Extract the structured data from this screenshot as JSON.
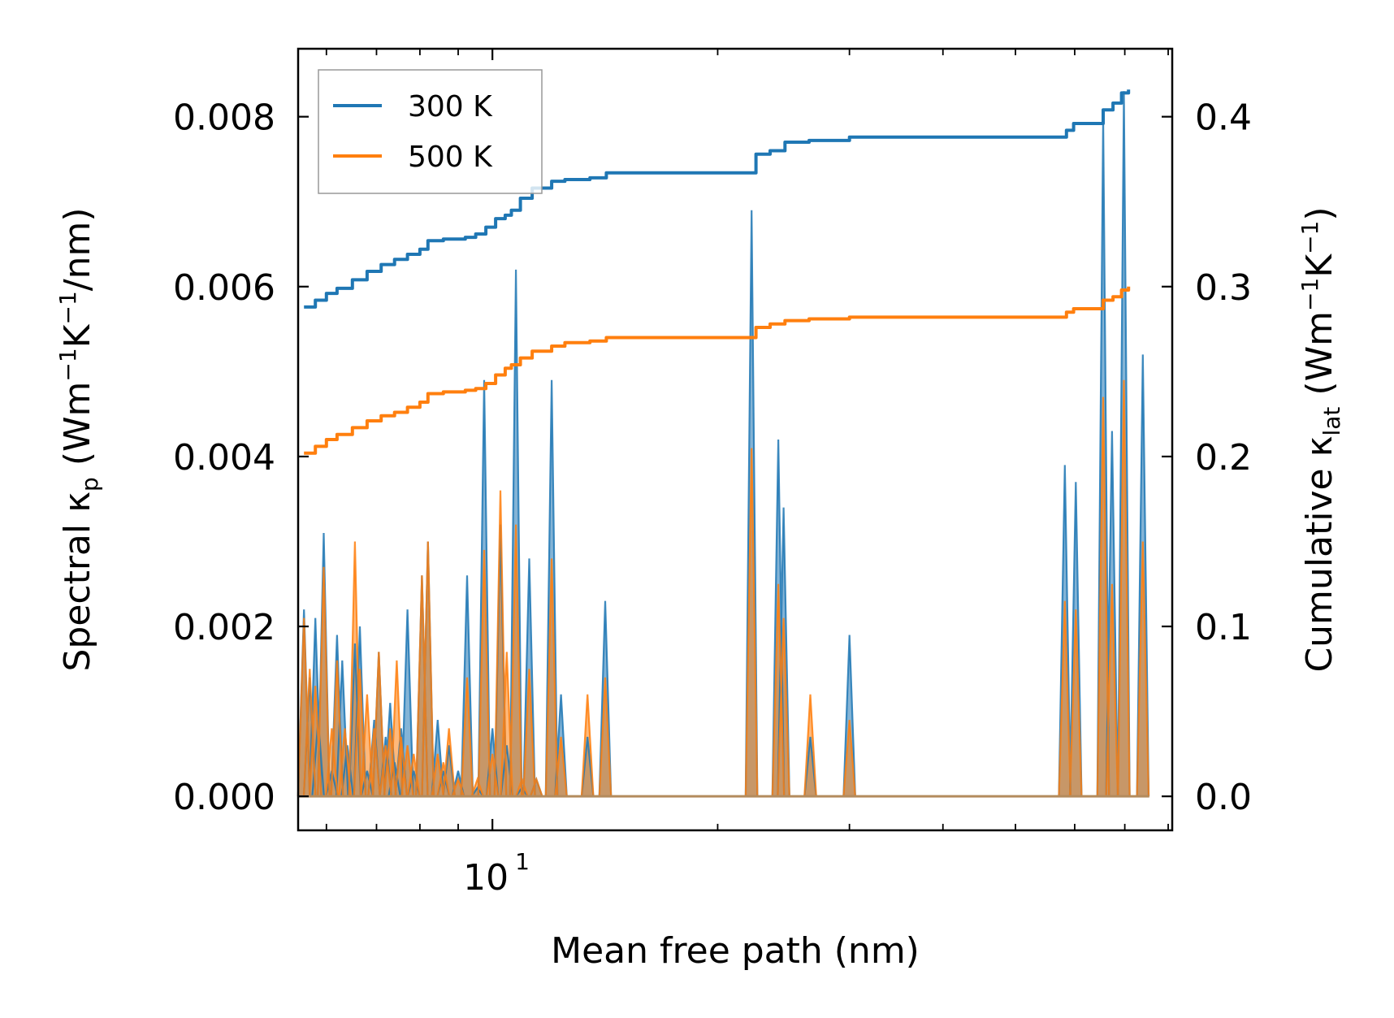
{
  "chart_data": {
    "type": "line",
    "xscale": "log",
    "xlabel": "Mean free path (nm)",
    "xlim": [
      5.5,
      81
    ],
    "x_tick_labels": [
      {
        "value": 10,
        "label": "10",
        "exponent": "1"
      }
    ],
    "x_minor_ticks": [
      6,
      7,
      8,
      9,
      20,
      30,
      40,
      50,
      60,
      70,
      80
    ],
    "y_left": {
      "label_prefix": "Spectral κ",
      "label_sub": "p",
      "label_unit": " (Wm",
      "label_sup1": "−1",
      "label_mid": "K",
      "label_sup2": "−1",
      "label_end": "/nm)",
      "lim": [
        -0.0004,
        0.0088
      ],
      "ticks": [
        0.0,
        0.002,
        0.004,
        0.006,
        0.008
      ],
      "tick_labels": [
        "0.000",
        "0.002",
        "0.004",
        "0.006",
        "0.008"
      ]
    },
    "y_right": {
      "label_prefix": "Cumulative κ",
      "label_sub": "lat",
      "label_unit": " (Wm",
      "label_sup1": "−1",
      "label_mid": "K",
      "label_sup2": "−1",
      "label_end": ")",
      "lim": [
        -0.02,
        0.44
      ],
      "ticks": [
        0.0,
        0.1,
        0.2,
        0.3,
        0.4
      ],
      "tick_labels": [
        "0.0",
        "0.1",
        "0.2",
        "0.3",
        "0.4"
      ]
    },
    "legend": {
      "position": "top-left",
      "entries": [
        "300 K",
        "500 K"
      ]
    },
    "colors": {
      "300 K": "#1f77b4",
      "500 K": "#ff7f0e"
    },
    "spectral_300K": [
      [
        5.6,
        0.0022
      ],
      [
        5.7,
        0.0014
      ],
      [
        5.8,
        0.0021
      ],
      [
        5.85,
        0.0009
      ],
      [
        5.95,
        0.0031
      ],
      [
        6.1,
        0.0003
      ],
      [
        6.2,
        0.0019
      ],
      [
        6.3,
        0.0016
      ],
      [
        6.4,
        0.0006
      ],
      [
        6.55,
        0.0018
      ],
      [
        6.65,
        0.002
      ],
      [
        6.8,
        0.0003
      ],
      [
        6.95,
        0.0009
      ],
      [
        7.05,
        0.0017
      ],
      [
        7.2,
        0.0007
      ],
      [
        7.3,
        0.0011
      ],
      [
        7.4,
        0.0004
      ],
      [
        7.55,
        0.0008
      ],
      [
        7.7,
        0.0022
      ],
      [
        7.85,
        0.0003
      ],
      [
        8.05,
        0.0026
      ],
      [
        8.2,
        0.003
      ],
      [
        8.45,
        0.0009
      ],
      [
        8.6,
        0.0003
      ],
      [
        8.75,
        0.0006
      ],
      [
        9.0,
        0.0003
      ],
      [
        9.25,
        0.0026
      ],
      [
        9.55,
        0.0001
      ],
      [
        9.75,
        0.0049
      ],
      [
        10.0,
        0.0008
      ],
      [
        10.25,
        0.0032
      ],
      [
        10.45,
        0.0006
      ],
      [
        10.75,
        0.0062
      ],
      [
        10.95,
        0.0001
      ],
      [
        11.2,
        0.0028
      ],
      [
        11.45,
        0.0002
      ],
      [
        12.0,
        0.0049
      ],
      [
        12.35,
        0.0012
      ],
      [
        13.4,
        0.0007
      ],
      [
        14.15,
        0.0023
      ],
      [
        22.2,
        0.0069
      ],
      [
        24.1,
        0.0042
      ],
      [
        24.5,
        0.0034
      ],
      [
        26.6,
        0.0007
      ],
      [
        30.0,
        0.0019
      ],
      [
        58.2,
        0.0039
      ],
      [
        60.2,
        0.0037
      ],
      [
        65.5,
        0.008
      ],
      [
        67.3,
        0.0043
      ],
      [
        69.8,
        0.0083
      ],
      [
        74.0,
        0.0052
      ]
    ],
    "spectral_500K": [
      [
        5.6,
        0.0021
      ],
      [
        5.7,
        0.0015
      ],
      [
        5.8,
        0.0013
      ],
      [
        5.95,
        0.0027
      ],
      [
        6.1,
        0.0008
      ],
      [
        6.2,
        0.0016
      ],
      [
        6.35,
        0.0008
      ],
      [
        6.55,
        0.003
      ],
      [
        6.65,
        0.0015
      ],
      [
        6.8,
        0.0012
      ],
      [
        6.95,
        0.0008
      ],
      [
        7.05,
        0.0017
      ],
      [
        7.2,
        0.0006
      ],
      [
        7.3,
        0.0008
      ],
      [
        7.45,
        0.0016
      ],
      [
        7.55,
        0.0007
      ],
      [
        7.7,
        0.0006
      ],
      [
        7.85,
        0.0005
      ],
      [
        8.05,
        0.0026
      ],
      [
        8.2,
        0.003
      ],
      [
        8.45,
        0.0005
      ],
      [
        8.6,
        0.0004
      ],
      [
        8.75,
        0.0008
      ],
      [
        9.0,
        0.0002
      ],
      [
        9.25,
        0.0014
      ],
      [
        9.55,
        0.0002
      ],
      [
        9.75,
        0.0029
      ],
      [
        10.0,
        0.0005
      ],
      [
        10.25,
        0.0036
      ],
      [
        10.45,
        0.0017
      ],
      [
        10.75,
        0.0032
      ],
      [
        10.95,
        0.0002
      ],
      [
        11.2,
        0.0015
      ],
      [
        11.45,
        0.0002
      ],
      [
        12.0,
        0.0028
      ],
      [
        12.35,
        0.0007
      ],
      [
        13.4,
        0.0012
      ],
      [
        14.15,
        0.0014
      ],
      [
        22.2,
        0.0041
      ],
      [
        24.1,
        0.0025
      ],
      [
        24.5,
        0.0021
      ],
      [
        26.6,
        0.0012
      ],
      [
        30.0,
        0.0009
      ],
      [
        58.2,
        0.0023
      ],
      [
        60.2,
        0.0022
      ],
      [
        65.5,
        0.0047
      ],
      [
        67.3,
        0.0025
      ],
      [
        69.8,
        0.0049
      ],
      [
        74.0,
        0.003
      ]
    ],
    "cumulative_300K": [
      [
        5.6,
        0.288
      ],
      [
        5.8,
        0.292
      ],
      [
        6.0,
        0.296
      ],
      [
        6.2,
        0.299
      ],
      [
        6.5,
        0.304
      ],
      [
        6.8,
        0.309
      ],
      [
        7.1,
        0.313
      ],
      [
        7.4,
        0.316
      ],
      [
        7.7,
        0.319
      ],
      [
        8.0,
        0.322
      ],
      [
        8.2,
        0.327
      ],
      [
        8.6,
        0.328
      ],
      [
        9.2,
        0.329
      ],
      [
        9.5,
        0.331
      ],
      [
        9.8,
        0.335
      ],
      [
        10.1,
        0.34
      ],
      [
        10.4,
        0.342
      ],
      [
        10.6,
        0.345
      ],
      [
        10.9,
        0.352
      ],
      [
        11.3,
        0.358
      ],
      [
        12.0,
        0.362
      ],
      [
        12.5,
        0.363
      ],
      [
        13.5,
        0.364
      ],
      [
        14.2,
        0.367
      ],
      [
        21.8,
        0.367
      ],
      [
        22.5,
        0.378
      ],
      [
        23.5,
        0.38
      ],
      [
        24.6,
        0.385
      ],
      [
        26.5,
        0.386
      ],
      [
        30.0,
        0.388
      ],
      [
        56.8,
        0.388
      ],
      [
        58.5,
        0.392
      ],
      [
        59.8,
        0.396
      ],
      [
        64.8,
        0.396
      ],
      [
        65.5,
        0.404
      ],
      [
        67.5,
        0.408
      ],
      [
        69.3,
        0.414
      ],
      [
        70.8,
        0.416
      ]
    ],
    "cumulative_500K": [
      [
        5.6,
        0.202
      ],
      [
        5.8,
        0.206
      ],
      [
        6.0,
        0.21
      ],
      [
        6.2,
        0.213
      ],
      [
        6.5,
        0.217
      ],
      [
        6.8,
        0.221
      ],
      [
        7.1,
        0.224
      ],
      [
        7.4,
        0.226
      ],
      [
        7.7,
        0.229
      ],
      [
        8.0,
        0.232
      ],
      [
        8.2,
        0.237
      ],
      [
        8.6,
        0.238
      ],
      [
        9.2,
        0.239
      ],
      [
        9.5,
        0.24
      ],
      [
        9.8,
        0.243
      ],
      [
        10.1,
        0.248
      ],
      [
        10.4,
        0.252
      ],
      [
        10.6,
        0.254
      ],
      [
        10.9,
        0.258
      ],
      [
        11.3,
        0.262
      ],
      [
        12.0,
        0.265
      ],
      [
        12.5,
        0.267
      ],
      [
        13.5,
        0.268
      ],
      [
        14.2,
        0.27
      ],
      [
        21.8,
        0.27
      ],
      [
        22.5,
        0.276
      ],
      [
        23.5,
        0.278
      ],
      [
        24.6,
        0.28
      ],
      [
        26.5,
        0.281
      ],
      [
        30.0,
        0.282
      ],
      [
        56.8,
        0.282
      ],
      [
        58.5,
        0.285
      ],
      [
        59.8,
        0.287
      ],
      [
        64.8,
        0.287
      ],
      [
        65.5,
        0.292
      ],
      [
        67.5,
        0.294
      ],
      [
        69.3,
        0.298
      ],
      [
        70.8,
        0.3
      ]
    ]
  }
}
